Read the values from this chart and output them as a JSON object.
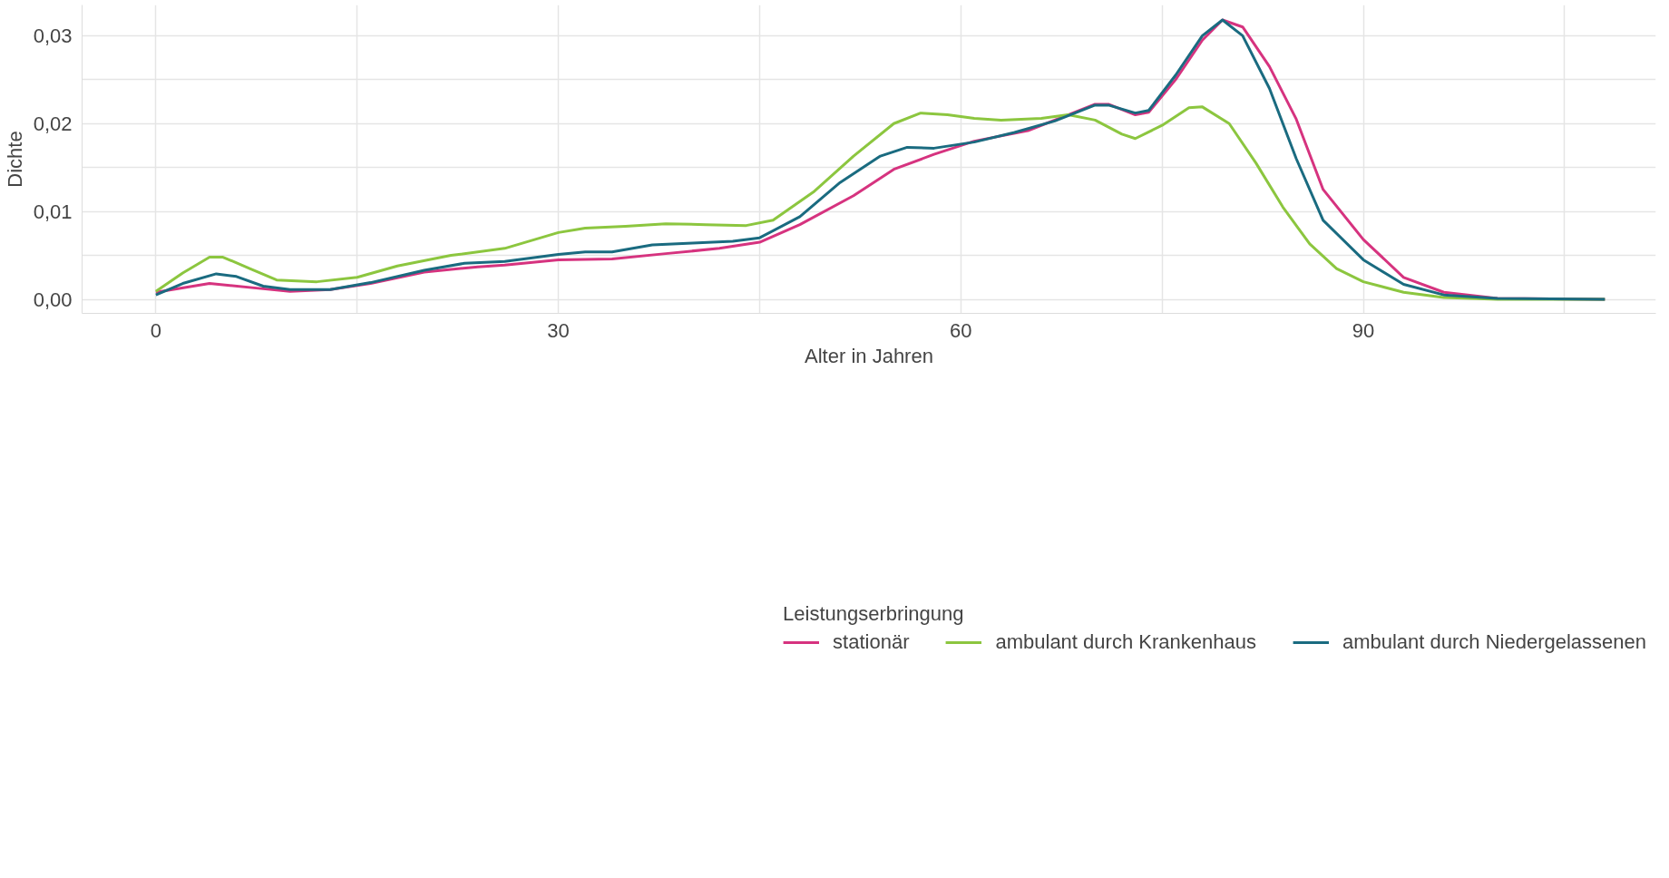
{
  "chart_data": {
    "type": "line",
    "xlabel": "Alter in Jahren",
    "ylabel": "Dichte",
    "legend_title": "Leistungserbringung",
    "legend": "bottom",
    "grid": true,
    "line_style": "solid",
    "marker": "none",
    "xlim": [
      -5.5,
      111.8
    ],
    "ylim": [
      -0.0016,
      0.0335
    ],
    "xticks": [
      0,
      {
        "value": 15,
        "label": null
      },
      30,
      {
        "value": 45,
        "label": null
      },
      60,
      {
        "value": 75,
        "label": null
      },
      90,
      {
        "value": 105,
        "label": null
      }
    ],
    "yticks": [
      {
        "value": 0,
        "label": "0,00"
      },
      {
        "value": 0.005,
        "label": null
      },
      {
        "value": 0.01,
        "label": "0,01"
      },
      {
        "value": 0.015,
        "label": null
      },
      {
        "value": 0.02,
        "label": "0,02"
      },
      {
        "value": 0.025,
        "label": null
      },
      {
        "value": 0.03,
        "label": "0,03"
      }
    ],
    "series": [
      {
        "name": "stationär",
        "color": "#d6337f",
        "x": [
          0,
          4,
          8,
          10,
          13,
          16,
          20,
          24,
          26,
          30,
          34,
          38,
          42,
          45,
          48,
          52,
          55,
          58,
          61,
          65,
          68,
          70,
          71,
          73,
          74,
          76,
          78,
          79.5,
          81,
          83,
          85,
          87,
          90,
          93,
          96,
          100,
          108
        ],
        "values": [
          0.0008,
          0.0018,
          0.0012,
          0.0009,
          0.0011,
          0.0018,
          0.0031,
          0.0037,
          0.0039,
          0.0045,
          0.0046,
          0.0052,
          0.0058,
          0.0065,
          0.0085,
          0.0118,
          0.0148,
          0.0165,
          0.018,
          0.0192,
          0.021,
          0.0222,
          0.0222,
          0.021,
          0.0213,
          0.025,
          0.0295,
          0.0318,
          0.031,
          0.0265,
          0.0205,
          0.0125,
          0.0068,
          0.0025,
          0.0008,
          0.0001,
          0.0
        ]
      },
      {
        "name": "ambulant durch Krankenhaus",
        "color": "#8cc63f",
        "x": [
          0,
          2,
          4,
          5,
          7,
          9,
          12,
          15,
          18,
          22,
          26,
          30,
          32,
          35,
          38,
          41,
          44,
          46,
          49,
          52,
          55,
          57,
          59,
          61,
          63,
          66,
          68,
          70,
          72,
          73,
          75,
          77,
          78,
          80,
          82,
          84,
          86,
          88,
          90,
          93,
          96,
          100,
          108
        ],
        "values": [
          0.0009,
          0.003,
          0.0048,
          0.0048,
          0.0035,
          0.0022,
          0.002,
          0.0025,
          0.0038,
          0.005,
          0.0058,
          0.0076,
          0.0081,
          0.0083,
          0.0086,
          0.0085,
          0.0084,
          0.009,
          0.0122,
          0.0163,
          0.02,
          0.0212,
          0.021,
          0.0206,
          0.0204,
          0.0206,
          0.021,
          0.0204,
          0.0188,
          0.0183,
          0.0198,
          0.0218,
          0.0219,
          0.02,
          0.0155,
          0.0105,
          0.0063,
          0.0035,
          0.002,
          0.0008,
          0.0002,
          0.0,
          0.0
        ]
      },
      {
        "name": "ambulant durch Niedergelassenen",
        "color": "#1a6b80",
        "x": [
          0,
          2,
          4.5,
          6,
          8,
          10,
          13,
          16,
          20,
          23,
          26,
          30,
          32,
          34,
          37,
          40,
          43,
          45,
          48,
          51,
          54,
          56,
          58,
          61,
          64,
          67,
          70,
          71,
          73,
          74,
          76,
          78,
          79.5,
          81,
          83,
          85,
          87,
          90,
          93,
          96,
          100,
          108
        ],
        "values": [
          0.0005,
          0.0018,
          0.0029,
          0.0026,
          0.0015,
          0.0011,
          0.0011,
          0.0019,
          0.0033,
          0.0041,
          0.0043,
          0.0051,
          0.0054,
          0.0054,
          0.0062,
          0.0064,
          0.0066,
          0.007,
          0.0094,
          0.0133,
          0.0163,
          0.0173,
          0.0172,
          0.0179,
          0.019,
          0.0203,
          0.0221,
          0.0221,
          0.0212,
          0.0215,
          0.0255,
          0.03,
          0.0318,
          0.03,
          0.024,
          0.016,
          0.009,
          0.0045,
          0.0017,
          0.0005,
          0.0001,
          0.0
        ]
      }
    ]
  }
}
